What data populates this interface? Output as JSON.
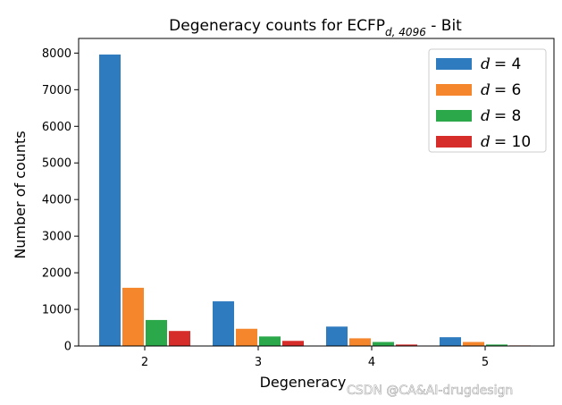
{
  "chart_data": {
    "type": "bar",
    "title": "Degeneracy counts for ECFP",
    "title_subscript": "d, 4096",
    "title_suffix": " - Bit",
    "xlabel": "Degeneracy",
    "ylabel": "Number of counts",
    "categories": [
      "2",
      "3",
      "4",
      "5"
    ],
    "ylim": [
      0,
      8400
    ],
    "yticks": [
      0,
      1000,
      2000,
      3000,
      4000,
      5000,
      6000,
      7000,
      8000
    ],
    "grid": false,
    "legend_position": "top-right",
    "series": [
      {
        "name": "d = 4",
        "legend_var": "d",
        "legend_value": "= 4",
        "color": "#2f7bbf",
        "values": [
          7960,
          1220,
          530,
          240
        ]
      },
      {
        "name": "d = 6",
        "legend_var": "d",
        "legend_value": "= 6",
        "color": "#f5862b",
        "values": [
          1590,
          470,
          210,
          110
        ]
      },
      {
        "name": "d = 8",
        "legend_var": "d",
        "legend_value": "= 8",
        "color": "#2aa84a",
        "values": [
          710,
          260,
          110,
          40
        ]
      },
      {
        "name": "d = 10",
        "legend_var": "d",
        "legend_value": "= 10",
        "color": "#d62d2a",
        "values": [
          410,
          140,
          40,
          15
        ]
      }
    ]
  },
  "watermark": "CSDN @CA&AI-drugdesign"
}
